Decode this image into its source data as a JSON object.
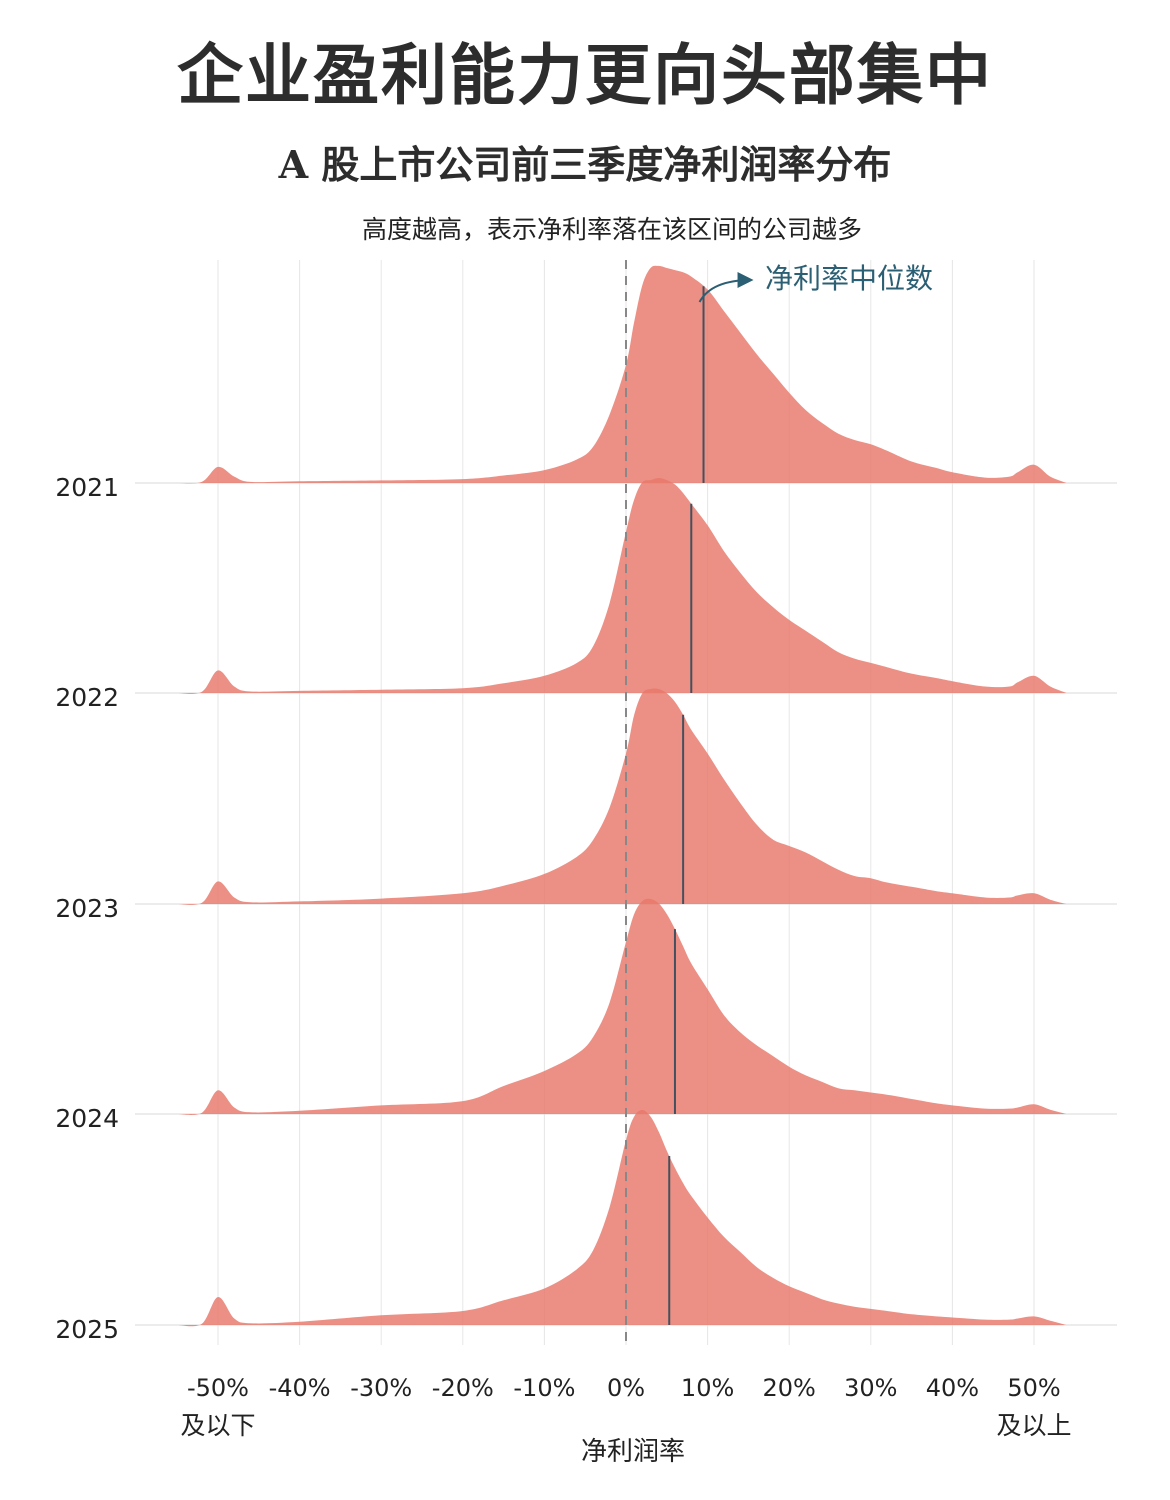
{
  "title": "企业盈利能力更向头部集中",
  "subtitle": "A 股上市公司前三季度净利润率分布",
  "note": "高度越高，表示净利率落在该区间的公司越多",
  "chart_data": {
    "type": "ridgeline",
    "xlabel": "净利润率",
    "xlim": [
      -55,
      55
    ],
    "x_ticks": [
      -50,
      -40,
      -30,
      -20,
      -10,
      0,
      10,
      20,
      30,
      40,
      50
    ],
    "x_tick_labels": [
      "-50%",
      "-40%",
      "-30%",
      "-20%",
      "-10%",
      "0%",
      "10%",
      "20%",
      "30%",
      "40%",
      "50%"
    ],
    "x_extreme_labels": {
      "left": "及以下",
      "right": "及以上"
    },
    "reference_line_x": 0,
    "median_annotation": "净利率中位数",
    "fill_color": "#e8786a",
    "median_line_color": "#44505e",
    "annotation_color": "#2b5f73",
    "x": [
      -55,
      -52,
      -50,
      -48,
      -46,
      -40,
      -30,
      -20,
      -15,
      -10,
      -6,
      -4,
      -2,
      0,
      1,
      2,
      3,
      4,
      5,
      6,
      7,
      8,
      10,
      12,
      14,
      16,
      18,
      20,
      22,
      24,
      26,
      28,
      30,
      32,
      35,
      38,
      40,
      44,
      47,
      48,
      50,
      52,
      54
    ],
    "series": [
      {
        "name": "2021",
        "median": 9.5,
        "density": [
          0,
          0.005,
          0.075,
          0.03,
          0.005,
          0.008,
          0.012,
          0.018,
          0.035,
          0.06,
          0.11,
          0.17,
          0.32,
          0.55,
          0.75,
          0.92,
          1.0,
          1.01,
          1.0,
          0.99,
          0.98,
          0.96,
          0.9,
          0.8,
          0.7,
          0.6,
          0.51,
          0.42,
          0.34,
          0.28,
          0.23,
          0.2,
          0.18,
          0.15,
          0.1,
          0.07,
          0.05,
          0.025,
          0.03,
          0.05,
          0.085,
          0.03,
          0
        ]
      },
      {
        "name": "2022",
        "median": 8.0,
        "density": [
          0,
          0.005,
          0.105,
          0.03,
          0.007,
          0.01,
          0.015,
          0.022,
          0.045,
          0.08,
          0.14,
          0.22,
          0.42,
          0.75,
          0.9,
          0.98,
          0.99,
          1.0,
          0.99,
          0.97,
          0.93,
          0.88,
          0.78,
          0.66,
          0.56,
          0.47,
          0.4,
          0.34,
          0.29,
          0.24,
          0.19,
          0.16,
          0.14,
          0.12,
          0.09,
          0.07,
          0.055,
          0.03,
          0.03,
          0.05,
          0.08,
          0.03,
          0
        ]
      },
      {
        "name": "2023",
        "median": 7.0,
        "density": [
          0,
          0.005,
          0.105,
          0.03,
          0.008,
          0.012,
          0.025,
          0.05,
          0.085,
          0.14,
          0.22,
          0.3,
          0.45,
          0.7,
          0.88,
          0.98,
          1.0,
          1.0,
          0.98,
          0.94,
          0.88,
          0.81,
          0.7,
          0.58,
          0.47,
          0.37,
          0.3,
          0.27,
          0.24,
          0.2,
          0.16,
          0.13,
          0.12,
          0.1,
          0.08,
          0.06,
          0.05,
          0.03,
          0.03,
          0.04,
          0.05,
          0.02,
          0
        ]
      },
      {
        "name": "2024",
        "median": 6.0,
        "density": [
          0,
          0.005,
          0.11,
          0.03,
          0.008,
          0.015,
          0.04,
          0.06,
          0.13,
          0.2,
          0.28,
          0.36,
          0.52,
          0.8,
          0.93,
          0.99,
          1.0,
          0.98,
          0.93,
          0.86,
          0.78,
          0.7,
          0.58,
          0.46,
          0.38,
          0.32,
          0.27,
          0.22,
          0.18,
          0.15,
          0.12,
          0.11,
          0.1,
          0.09,
          0.07,
          0.05,
          0.04,
          0.025,
          0.025,
          0.03,
          0.045,
          0.02,
          0
        ]
      },
      {
        "name": "2025",
        "median": 5.3,
        "density": [
          0,
          0.005,
          0.13,
          0.03,
          0.008,
          0.015,
          0.045,
          0.065,
          0.115,
          0.17,
          0.26,
          0.35,
          0.55,
          0.86,
          0.97,
          1.0,
          0.97,
          0.9,
          0.81,
          0.73,
          0.66,
          0.6,
          0.5,
          0.41,
          0.34,
          0.27,
          0.22,
          0.18,
          0.15,
          0.12,
          0.1,
          0.085,
          0.075,
          0.065,
          0.05,
          0.04,
          0.035,
          0.025,
          0.025,
          0.03,
          0.04,
          0.02,
          0
        ]
      }
    ]
  }
}
